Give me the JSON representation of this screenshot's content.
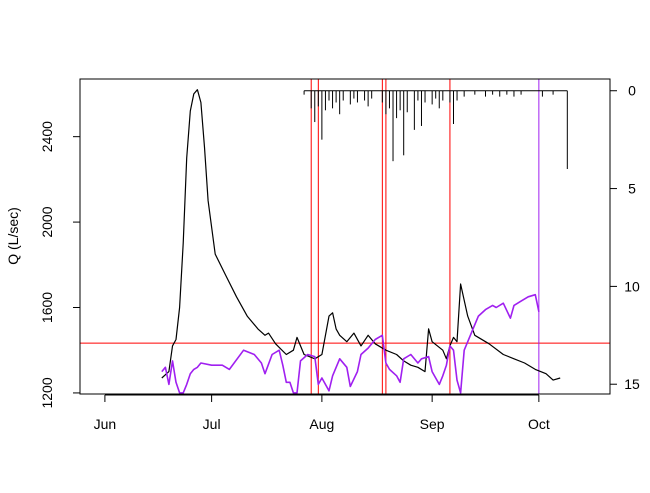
{
  "chart_data": {
    "type": "line",
    "title": "",
    "xlabel": "",
    "ylabel": "Q (L/sec)",
    "y2label": "",
    "x_ticks": [
      {
        "label": "Jun",
        "date": "2019-06-01"
      },
      {
        "label": "Jul",
        "date": "2019-07-01"
      },
      {
        "label": "Aug",
        "date": "2019-08-01"
      },
      {
        "label": "Sep",
        "date": "2019-09-01"
      },
      {
        "label": "Oct",
        "date": "2019-10-01"
      }
    ],
    "xlim": [
      "2019-05-25",
      "2019-10-21"
    ],
    "ylim": [
      1195,
      2670
    ],
    "y_ticks": [
      1200,
      1600,
      2000,
      2400
    ],
    "y2lim": [
      15.5,
      -0.6
    ],
    "y2_ticks": [
      0,
      5,
      10,
      15
    ],
    "reference_lines": {
      "horizontal": [
        {
          "y": 1433,
          "color": "#ff0000"
        }
      ],
      "vertical": [
        {
          "date": "2019-07-29",
          "color": "#ff0000"
        },
        {
          "date": "2019-07-31",
          "color": "#ff0000"
        },
        {
          "date": "2019-08-18",
          "color": "#ff0000"
        },
        {
          "date": "2019-08-19",
          "color": "#ff0000"
        },
        {
          "date": "2019-09-06",
          "color": "#ff0000"
        },
        {
          "date": "2019-10-01",
          "color": "#a020f0"
        }
      ]
    },
    "series": [
      {
        "color": "#000000",
        "axis": "left",
        "points": [
          [
            "2019-06-17",
            1270
          ],
          [
            "2019-06-19",
            1300
          ],
          [
            "2019-06-20",
            1420
          ],
          [
            "2019-06-21",
            1450
          ],
          [
            "2019-06-22",
            1600
          ],
          [
            "2019-06-23",
            1900
          ],
          [
            "2019-06-24",
            2300
          ],
          [
            "2019-06-25",
            2520
          ],
          [
            "2019-06-26",
            2600
          ],
          [
            "2019-06-27",
            2620
          ],
          [
            "2019-06-28",
            2560
          ],
          [
            "2019-06-29",
            2350
          ],
          [
            "2019-06-30",
            2100
          ],
          [
            "2019-07-02",
            1850
          ],
          [
            "2019-07-05",
            1750
          ],
          [
            "2019-07-08",
            1650
          ],
          [
            "2019-07-11",
            1560
          ],
          [
            "2019-07-14",
            1500
          ],
          [
            "2019-07-16",
            1470
          ],
          [
            "2019-07-17",
            1480
          ],
          [
            "2019-07-19",
            1430
          ],
          [
            "2019-07-22",
            1380
          ],
          [
            "2019-07-24",
            1400
          ],
          [
            "2019-07-25",
            1460
          ],
          [
            "2019-07-27",
            1380
          ],
          [
            "2019-07-30",
            1360
          ],
          [
            "2019-08-01",
            1380
          ],
          [
            "2019-08-03",
            1560
          ],
          [
            "2019-08-04",
            1575
          ],
          [
            "2019-08-05",
            1500
          ],
          [
            "2019-08-06",
            1470
          ],
          [
            "2019-08-08",
            1440
          ],
          [
            "2019-08-10",
            1480
          ],
          [
            "2019-08-12",
            1420
          ],
          [
            "2019-08-14",
            1470
          ],
          [
            "2019-08-16",
            1430
          ],
          [
            "2019-08-19",
            1400
          ],
          [
            "2019-08-22",
            1380
          ],
          [
            "2019-08-24",
            1350
          ],
          [
            "2019-08-26",
            1330
          ],
          [
            "2019-08-28",
            1320
          ],
          [
            "2019-08-30",
            1300
          ],
          [
            "2019-08-31",
            1500
          ],
          [
            "2019-09-01",
            1440
          ],
          [
            "2019-09-04",
            1400
          ],
          [
            "2019-09-05",
            1360
          ],
          [
            "2019-09-06",
            1420
          ],
          [
            "2019-09-07",
            1460
          ],
          [
            "2019-09-08",
            1440
          ],
          [
            "2019-09-09",
            1710
          ],
          [
            "2019-09-11",
            1560
          ],
          [
            "2019-09-13",
            1470
          ],
          [
            "2019-09-17",
            1430
          ],
          [
            "2019-09-21",
            1380
          ],
          [
            "2019-09-24",
            1360
          ],
          [
            "2019-09-27",
            1340
          ],
          [
            "2019-09-30",
            1310
          ],
          [
            "2019-10-03",
            1290
          ],
          [
            "2019-10-05",
            1260
          ],
          [
            "2019-10-07",
            1270
          ]
        ]
      },
      {
        "color": "#a020f0",
        "axis": "left",
        "points": [
          [
            "2019-06-17",
            1300
          ],
          [
            "2019-06-18",
            1320
          ],
          [
            "2019-06-19",
            1240
          ],
          [
            "2019-06-20",
            1350
          ],
          [
            "2019-06-21",
            1250
          ],
          [
            "2019-06-22",
            1200
          ],
          [
            "2019-06-23",
            1200
          ],
          [
            "2019-06-24",
            1240
          ],
          [
            "2019-06-25",
            1290
          ],
          [
            "2019-06-26",
            1310
          ],
          [
            "2019-06-27",
            1320
          ],
          [
            "2019-06-28",
            1340
          ],
          [
            "2019-07-01",
            1330
          ],
          [
            "2019-07-04",
            1330
          ],
          [
            "2019-07-06",
            1310
          ],
          [
            "2019-07-10",
            1400
          ],
          [
            "2019-07-13",
            1380
          ],
          [
            "2019-07-15",
            1340
          ],
          [
            "2019-07-16",
            1290
          ],
          [
            "2019-07-18",
            1380
          ],
          [
            "2019-07-20",
            1400
          ],
          [
            "2019-07-21",
            1330
          ],
          [
            "2019-07-22",
            1250
          ],
          [
            "2019-07-23",
            1250
          ],
          [
            "2019-07-24",
            1200
          ],
          [
            "2019-07-25",
            1200
          ],
          [
            "2019-07-26",
            1350
          ],
          [
            "2019-07-28",
            1380
          ],
          [
            "2019-07-30",
            1370
          ],
          [
            "2019-07-31",
            1240
          ],
          [
            "2019-08-01",
            1270
          ],
          [
            "2019-08-03",
            1210
          ],
          [
            "2019-08-04",
            1280
          ],
          [
            "2019-08-06",
            1360
          ],
          [
            "2019-08-08",
            1320
          ],
          [
            "2019-08-09",
            1230
          ],
          [
            "2019-08-11",
            1300
          ],
          [
            "2019-08-12",
            1380
          ],
          [
            "2019-08-14",
            1410
          ],
          [
            "2019-08-16",
            1450
          ],
          [
            "2019-08-18",
            1470
          ],
          [
            "2019-08-19",
            1340
          ],
          [
            "2019-08-20",
            1310
          ],
          [
            "2019-08-22",
            1280
          ],
          [
            "2019-08-23",
            1250
          ],
          [
            "2019-08-24",
            1360
          ],
          [
            "2019-08-26",
            1380
          ],
          [
            "2019-08-28",
            1340
          ],
          [
            "2019-08-29",
            1360
          ],
          [
            "2019-08-31",
            1370
          ],
          [
            "2019-09-01",
            1300
          ],
          [
            "2019-09-03",
            1240
          ],
          [
            "2019-09-04",
            1280
          ],
          [
            "2019-09-05",
            1330
          ],
          [
            "2019-09-06",
            1420
          ],
          [
            "2019-09-07",
            1400
          ],
          [
            "2019-09-08",
            1260
          ],
          [
            "2019-09-09",
            1200
          ],
          [
            "2019-09-10",
            1400
          ],
          [
            "2019-09-12",
            1480
          ],
          [
            "2019-09-14",
            1560
          ],
          [
            "2019-09-16",
            1590
          ],
          [
            "2019-09-18",
            1610
          ],
          [
            "2019-09-19",
            1600
          ],
          [
            "2019-09-21",
            1620
          ],
          [
            "2019-09-23",
            1550
          ],
          [
            "2019-09-24",
            1610
          ],
          [
            "2019-09-26",
            1630
          ],
          [
            "2019-09-28",
            1650
          ],
          [
            "2019-09-30",
            1660
          ],
          [
            "2019-10-01",
            1580
          ]
        ]
      },
      {
        "color": "#000000",
        "axis": "right",
        "style": "spikes",
        "points": [
          [
            "2019-07-27",
            0.2
          ],
          [
            "2019-07-29",
            0.9
          ],
          [
            "2019-07-30",
            1.6
          ],
          [
            "2019-07-31",
            0.8
          ],
          [
            "2019-08-01",
            2.5
          ],
          [
            "2019-08-02",
            1.0
          ],
          [
            "2019-08-03",
            0.5
          ],
          [
            "2019-08-04",
            0.9
          ],
          [
            "2019-08-05",
            0.6
          ],
          [
            "2019-08-06",
            1.2
          ],
          [
            "2019-08-07",
            0.5
          ],
          [
            "2019-08-09",
            0.7
          ],
          [
            "2019-08-10",
            0.4
          ],
          [
            "2019-08-11",
            0.6
          ],
          [
            "2019-08-13",
            0.5
          ],
          [
            "2019-08-14",
            0.8
          ],
          [
            "2019-08-15",
            0.4
          ],
          [
            "2019-08-18",
            0.6
          ],
          [
            "2019-08-19",
            1.2
          ],
          [
            "2019-08-20",
            0.9
          ],
          [
            "2019-08-21",
            3.6
          ],
          [
            "2019-08-22",
            1.4
          ],
          [
            "2019-08-23",
            1.0
          ],
          [
            "2019-08-24",
            3.3
          ],
          [
            "2019-08-25",
            1.1
          ],
          [
            "2019-08-27",
            2.0
          ],
          [
            "2019-08-28",
            0.5
          ],
          [
            "2019-08-29",
            1.8
          ],
          [
            "2019-08-30",
            0.6
          ],
          [
            "2019-09-01",
            0.7
          ],
          [
            "2019-09-02",
            0.4
          ],
          [
            "2019-09-03",
            0.9
          ],
          [
            "2019-09-04",
            0.5
          ],
          [
            "2019-09-06",
            0.6
          ],
          [
            "2019-09-07",
            1.7
          ],
          [
            "2019-09-08",
            0.5
          ],
          [
            "2019-09-10",
            0.3
          ],
          [
            "2019-09-13",
            0.2
          ],
          [
            "2019-09-16",
            0.3
          ],
          [
            "2019-09-18",
            0.2
          ],
          [
            "2019-09-20",
            0.3
          ],
          [
            "2019-09-22",
            0.2
          ],
          [
            "2019-09-24",
            0.3
          ],
          [
            "2019-09-26",
            0.2
          ],
          [
            "2019-10-02",
            0.3
          ],
          [
            "2019-10-05",
            0.2
          ],
          [
            "2019-10-09",
            4.0
          ]
        ]
      }
    ]
  }
}
